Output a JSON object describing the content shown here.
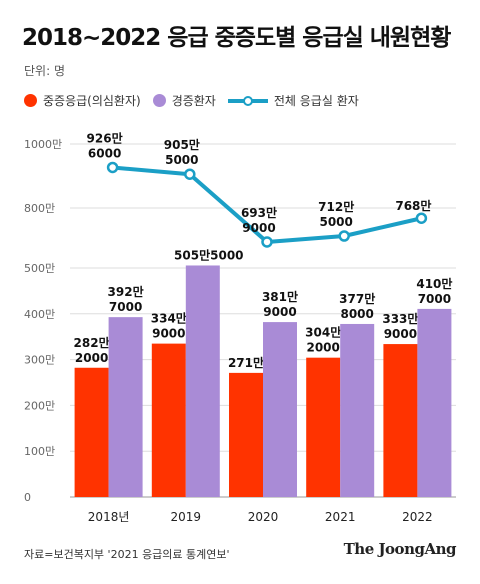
{
  "title": "2018~2022 응급 중증도별 응급실 내원현황",
  "unit": "단위: 명",
  "legend": [
    {
      "label": "중증응급(의심환자)",
      "color": "#ff3300",
      "shape": "dot"
    },
    {
      "label": "경증환자",
      "color": "#a98bd6",
      "shape": "dot"
    },
    {
      "label": "전체 응급실 환자",
      "color": "#1b9fc6",
      "shape": "line"
    }
  ],
  "source": "자료=보건복지부 '2021 응급의료 통계연보'",
  "brand": "The JoongAng",
  "chart_data": [
    {
      "type": "line",
      "categories": [
        "2018년",
        "2019",
        "2020",
        "2021",
        "2022"
      ],
      "series": [
        {
          "name": "전체 응급실 환자",
          "color": "#1b9fc6",
          "values": [
            9266000,
            9055000,
            6939000,
            7125000,
            7680000
          ],
          "labels": [
            [
              "926만",
              "6000"
            ],
            [
              "905만",
              "5000"
            ],
            [
              "693만",
              "9000"
            ],
            [
              "712만",
              "5000"
            ],
            [
              "768만"
            ]
          ]
        }
      ],
      "y_ticks": [
        "1000만",
        "800만"
      ],
      "ylim": [
        6000000,
        10000000
      ],
      "grid": true
    },
    {
      "type": "bar",
      "categories": [
        "2018년",
        "2019",
        "2020",
        "2021",
        "2022"
      ],
      "series": [
        {
          "name": "중증응급(의심환자)",
          "color": "#ff3300",
          "values": [
            2822000,
            3349000,
            2710000,
            3042000,
            3339000
          ],
          "labels": [
            [
              "282만",
              "2000"
            ],
            [
              "334만",
              "9000"
            ],
            [
              "271만"
            ],
            [
              "304만",
              "2000"
            ],
            [
              "333만",
              "9000"
            ]
          ]
        },
        {
          "name": "경증환자",
          "color": "#a98bd6",
          "values": [
            3927000,
            5055000,
            3819000,
            3778000,
            4107000
          ],
          "labels": [
            [
              "392만",
              "7000"
            ],
            [
              "505만5000"
            ],
            [
              "381만",
              "9000"
            ],
            [
              "377만",
              "8000"
            ],
            [
              "410만",
              "7000"
            ]
          ]
        }
      ],
      "y_ticks": [
        "500만",
        "400만",
        "300만",
        "200만",
        "100만",
        "0"
      ],
      "ylim": [
        0,
        5000000
      ],
      "grid": true
    }
  ]
}
